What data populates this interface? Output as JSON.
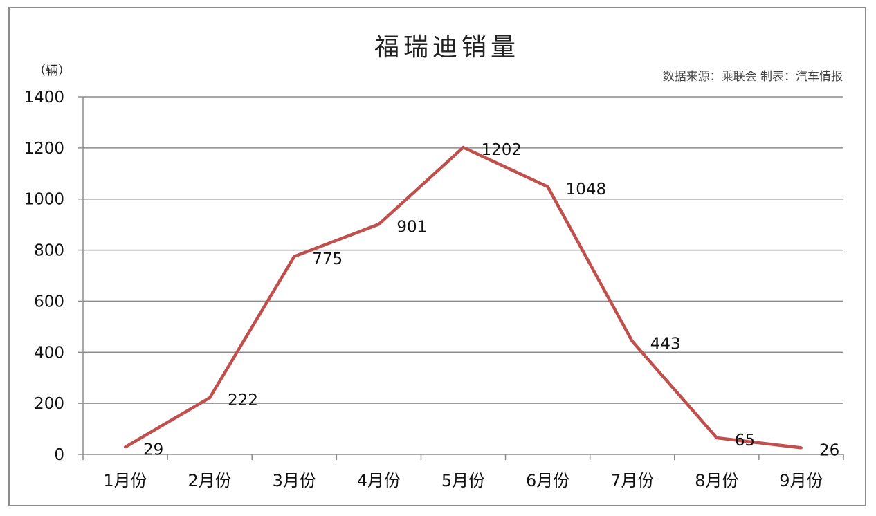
{
  "chart_data": {
    "type": "line",
    "title": "福瑞迪销量",
    "unit_label": "（辆）",
    "source_note": "数据来源：乘联会 制表：汽车情报",
    "categories": [
      "1月份",
      "2月份",
      "3月份",
      "4月份",
      "5月份",
      "6月份",
      "7月份",
      "8月份",
      "9月份"
    ],
    "series": [
      {
        "values": [
          29,
          222,
          775,
          901,
          1202,
          1048,
          443,
          65,
          26
        ]
      }
    ],
    "ylim": [
      0,
      1400
    ],
    "yticks": [
      0,
      200,
      400,
      600,
      800,
      1000,
      1200,
      1400
    ],
    "grid": true,
    "line_color": "#c0504d",
    "grid_color": "#8c8c8c"
  }
}
